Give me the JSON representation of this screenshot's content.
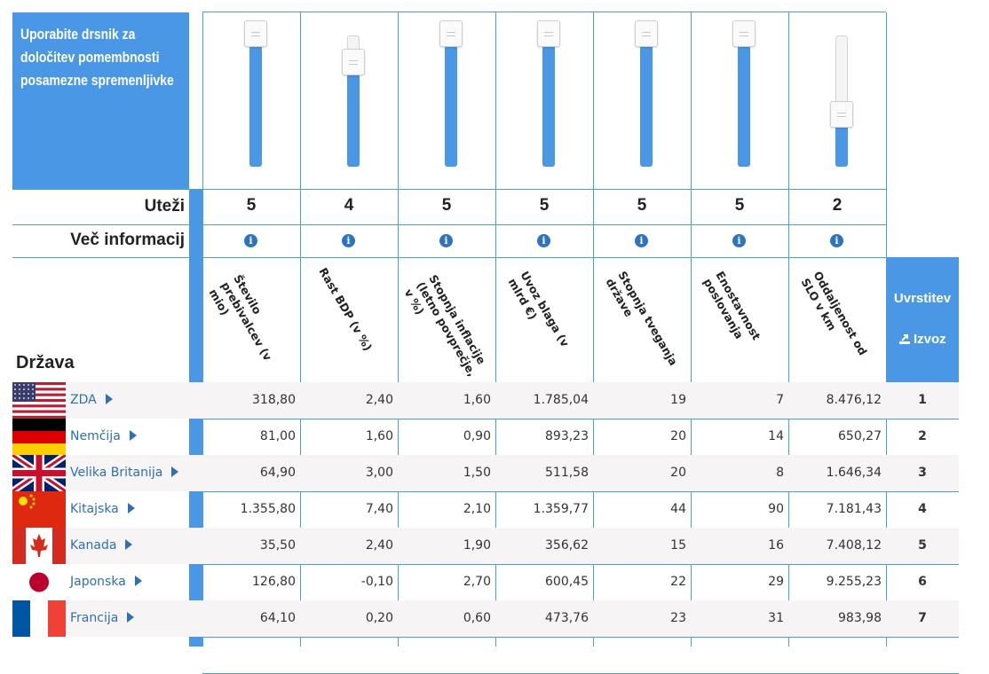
{
  "intro": {
    "text": "Uporabite drsnik za določitev pomembnosti posamezne spremenljivke"
  },
  "labels": {
    "weights": "Uteži",
    "more_info": "Več informacij",
    "country_header": "Država"
  },
  "variables": [
    {
      "name": "Število prebivalcev (v mio)",
      "weight": "5",
      "slider_level": 1.0
    },
    {
      "name": "Rast BDP (v %)",
      "weight": "4",
      "slider_level": 0.8
    },
    {
      "name": "Stopnja inflacije (letno povprečje, v %)",
      "weight": "5",
      "slider_level": 1.0
    },
    {
      "name": "Uvoz blaga (v mlrd €)",
      "weight": "5",
      "slider_level": 1.0
    },
    {
      "name": "Stopnja tveganja države",
      "weight": "5",
      "slider_level": 1.0
    },
    {
      "name": "Enostavnost poslovanja",
      "weight": "5",
      "slider_level": 1.0
    },
    {
      "name": "Oddaljenost od SLO v km",
      "weight": "2",
      "slider_level": 0.4
    }
  ],
  "info_icon": "info-icon",
  "ranking": {
    "title": "Uvrstitev",
    "export_label": "Izvoz",
    "export_icon": "export-icon"
  },
  "rows": [
    {
      "country": "ZDA",
      "flag": "usa-flag",
      "values": [
        "318,80",
        "2,40",
        "1,60",
        "1.785,04",
        "19",
        "7",
        "8.476,12"
      ],
      "rank": "1"
    },
    {
      "country": "Nemčija",
      "flag": "germany-flag",
      "values": [
        "81,00",
        "1,60",
        "0,90",
        "893,23",
        "20",
        "14",
        "650,27"
      ],
      "rank": "2"
    },
    {
      "country": "Velika Britanija",
      "flag": "uk-flag",
      "values": [
        "64,90",
        "3,00",
        "1,50",
        "511,58",
        "20",
        "8",
        "1.646,34"
      ],
      "rank": "3"
    },
    {
      "country": "Kitajska",
      "flag": "china-flag",
      "values": [
        "1.355,80",
        "7,40",
        "2,10",
        "1.359,77",
        "44",
        "90",
        "7.181,43"
      ],
      "rank": "4"
    },
    {
      "country": "Kanada",
      "flag": "canada-flag",
      "values": [
        "35,50",
        "2,40",
        "1,90",
        "356,62",
        "15",
        "16",
        "7.408,12"
      ],
      "rank": "5"
    },
    {
      "country": "Japonska",
      "flag": "japan-flag",
      "values": [
        "126,80",
        "-0,10",
        "2,70",
        "600,45",
        "22",
        "29",
        "9.255,23"
      ],
      "rank": "6"
    },
    {
      "country": "Francija",
      "flag": "france-flag",
      "values": [
        "64,10",
        "0,20",
        "0,60",
        "473,76",
        "23",
        "31",
        "983,98"
      ],
      "rank": "7"
    }
  ],
  "colors": {
    "accent": "#4a98e5",
    "grid": "#4aa1c8",
    "link": "#2f6fb3"
  }
}
